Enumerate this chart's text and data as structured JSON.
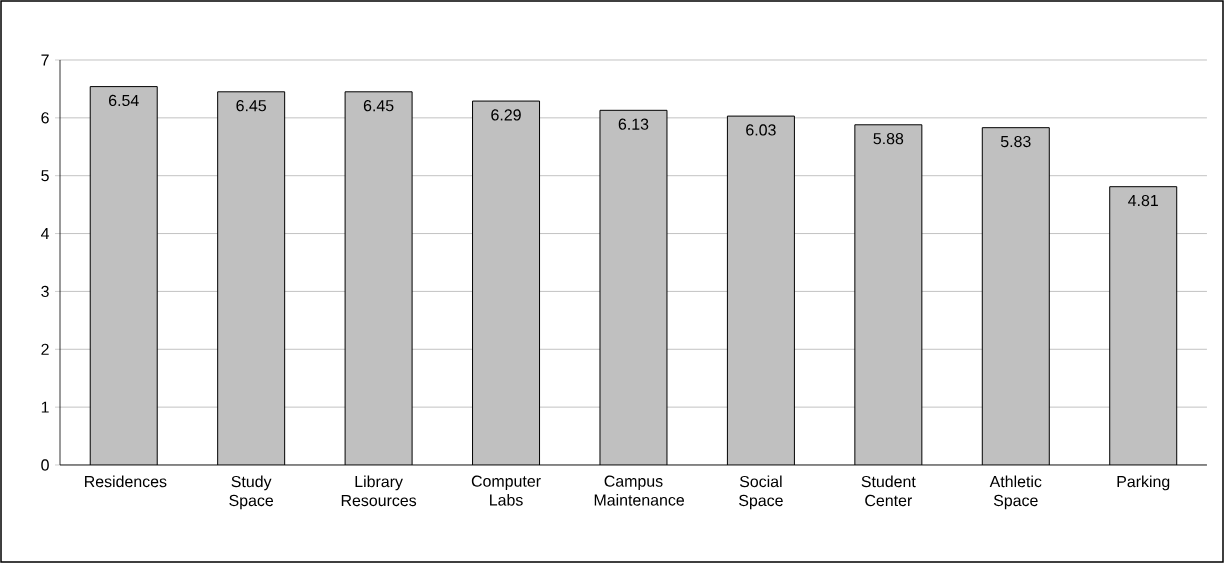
{
  "chart_data": {
    "type": "bar",
    "categories": [
      "Residences",
      "Study Space",
      "Library Resources",
      "Computer Labs",
      "Campus Maintenance",
      "Social Space",
      "Student Center",
      "Athletic Space",
      "Parking"
    ],
    "values": [
      6.54,
      6.45,
      6.45,
      6.29,
      6.13,
      6.03,
      5.88,
      5.83,
      4.81
    ],
    "color": "#c0c0c0",
    "ylim": [
      0,
      7
    ],
    "yticks": [
      0,
      1,
      2,
      3,
      4,
      5,
      6,
      7
    ],
    "grid": "y",
    "data_labels": true
  }
}
